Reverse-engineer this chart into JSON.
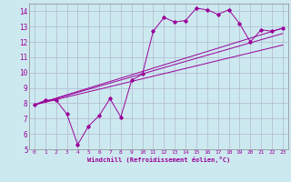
{
  "bg_color": "#cde9f0",
  "grid_color": "#b0b8d0",
  "line_color": "#990099",
  "xlabel": "Windchill (Refroidissement éolien,°C)",
  "xlim": [
    -0.5,
    23.5
  ],
  "ylim": [
    5,
    14.5
  ],
  "xticks": [
    0,
    1,
    2,
    3,
    4,
    5,
    6,
    7,
    8,
    9,
    10,
    11,
    12,
    13,
    14,
    15,
    16,
    17,
    18,
    19,
    20,
    21,
    22,
    23
  ],
  "yticks": [
    5,
    6,
    7,
    8,
    9,
    10,
    11,
    12,
    13,
    14
  ],
  "series1_x": [
    0,
    1,
    2,
    3,
    4,
    5,
    6,
    7,
    8,
    9,
    10,
    11,
    12,
    13,
    14,
    15,
    16,
    17,
    18,
    19,
    20,
    21,
    22,
    23
  ],
  "series1_y": [
    7.9,
    8.2,
    8.2,
    7.3,
    5.3,
    6.5,
    7.2,
    8.3,
    7.1,
    9.5,
    9.9,
    12.7,
    13.6,
    13.3,
    13.4,
    14.2,
    14.1,
    13.8,
    14.1,
    13.2,
    12.0,
    12.8,
    12.7,
    12.9
  ],
  "series2_x": [
    0,
    23
  ],
  "series2_y": [
    7.9,
    12.9
  ],
  "series3_x": [
    0,
    23
  ],
  "series3_y": [
    7.9,
    11.8
  ],
  "series4_x": [
    0,
    23
  ],
  "series4_y": [
    7.9,
    12.55
  ]
}
